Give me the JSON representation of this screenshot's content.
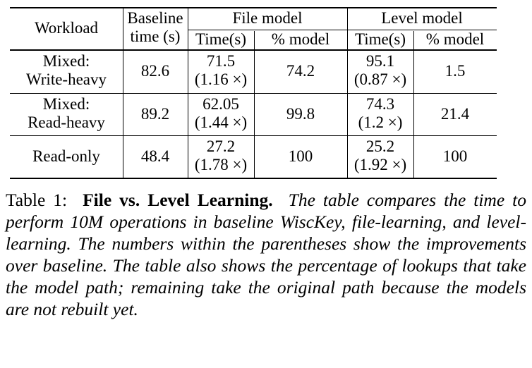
{
  "table": {
    "header": {
      "workload": "Workload",
      "baseline_line1": "Baseline",
      "baseline_line2": "time (s)",
      "file_model": "File model",
      "level_model": "Level model",
      "file_time": "Time(s)",
      "file_pct": "% model",
      "level_time": "Time(s)",
      "level_pct": "% model"
    },
    "rows": [
      {
        "workload": [
          "Mixed:",
          "Write-heavy"
        ],
        "baseline": "82.6",
        "file_time": "71.5",
        "file_speedup": "(1.16 ×)",
        "file_pct": "74.2",
        "level_time": "95.1",
        "level_speedup": "(0.87 ×)",
        "level_pct": "1.5"
      },
      {
        "workload": [
          "Mixed:",
          "Read-heavy"
        ],
        "baseline": "89.2",
        "file_time": "62.05",
        "file_speedup": "(1.44 ×)",
        "file_pct": "99.8",
        "level_time": "74.3",
        "level_speedup": "(1.2 ×)",
        "level_pct": "21.4"
      },
      {
        "workload": [
          "Read-only"
        ],
        "baseline": "48.4",
        "file_time": "27.2",
        "file_speedup": "(1.78 ×)",
        "file_pct": "100",
        "level_time": "25.2",
        "level_speedup": "(1.92 ×)",
        "level_pct": "100"
      }
    ]
  },
  "caption": {
    "label": "Table 1:",
    "title": "File vs. Level Learning.",
    "body": "The table compares the time to perform 10M operations in baseline WiscKey, file-learning, and level-learning. The numbers within the parentheses show the improvements over baseline. The table also shows the percentage of lookups that take the model path; remaining take the original path because the models are not rebuilt yet."
  }
}
